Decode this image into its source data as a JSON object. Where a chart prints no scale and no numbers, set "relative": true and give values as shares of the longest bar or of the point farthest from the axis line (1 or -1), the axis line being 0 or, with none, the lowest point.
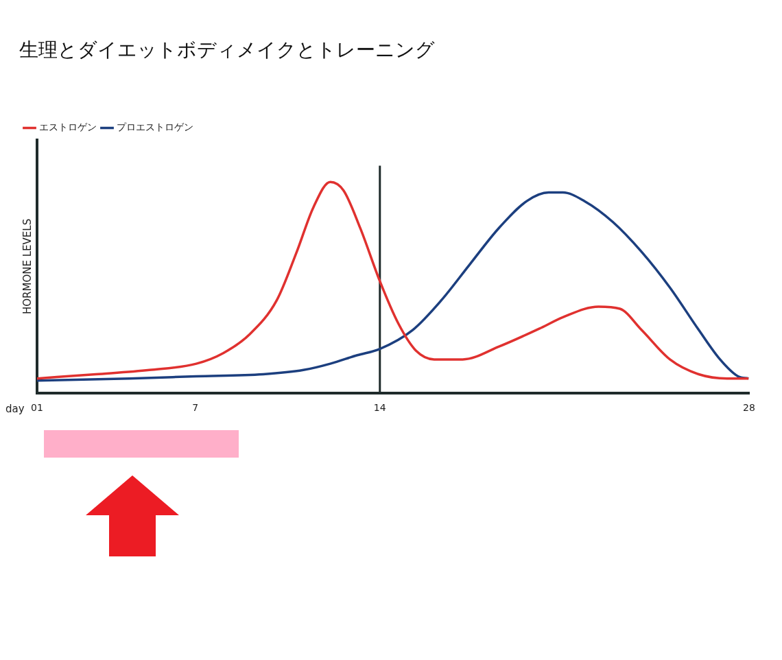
{
  "chart_data": {
    "type": "line",
    "title": "生理とダイエットボディメイクとトレーニング",
    "xlabel": "day",
    "ylabel": "HORMONE LEVELS",
    "relative": true,
    "legend": "top left",
    "grid": false,
    "marker": "none",
    "line_style": "solid",
    "xlim": [
      1,
      28
    ],
    "xticks": [
      {
        "value": 1,
        "label": "01"
      },
      7,
      14,
      28
    ],
    "ref_lines": [
      {
        "axis": "x",
        "value": 14,
        "color": "#1f2b2b"
      }
    ],
    "series": [
      {
        "name": "エストロゲン",
        "color": "#e0312f",
        "x": [
          1,
          3.23,
          5.26,
          7.04,
          8.06,
          9.07,
          10.09,
          10.85,
          11.48,
          12.12,
          12.62,
          13.26,
          14,
          14.7,
          15.38,
          16.06,
          17.14,
          18.5,
          20.12,
          20.94,
          22.29,
          23.1,
          23.92,
          25,
          26.09,
          27.17,
          27.98
        ],
        "values": [
          0.07,
          0.09,
          0.11,
          0.14,
          0.19,
          0.28,
          0.44,
          0.67,
          0.88,
          1,
          0.96,
          0.78,
          0.53,
          0.33,
          0.2,
          0.16,
          0.16,
          0.22,
          0.31,
          0.36,
          0.41,
          0.4,
          0.3,
          0.16,
          0.09,
          0.07,
          0.07
        ]
      },
      {
        "name": "プロエストロゲン",
        "color": "#1c3f7f",
        "x": [
          1,
          4.5,
          7.04,
          9.58,
          11.1,
          12.12,
          13.14,
          14,
          15.25,
          16.33,
          17.41,
          18.5,
          19.58,
          20.4,
          20.94,
          21.75,
          22.84,
          23.92,
          25,
          26.09,
          26.9,
          27.58,
          27.98
        ],
        "values": [
          0.06,
          0.07,
          0.08,
          0.09,
          0.11,
          0.14,
          0.18,
          0.21,
          0.3,
          0.44,
          0.61,
          0.78,
          0.91,
          0.95,
          0.95,
          0.91,
          0.81,
          0.67,
          0.5,
          0.3,
          0.16,
          0.08,
          0.07
        ]
      }
    ]
  }
}
